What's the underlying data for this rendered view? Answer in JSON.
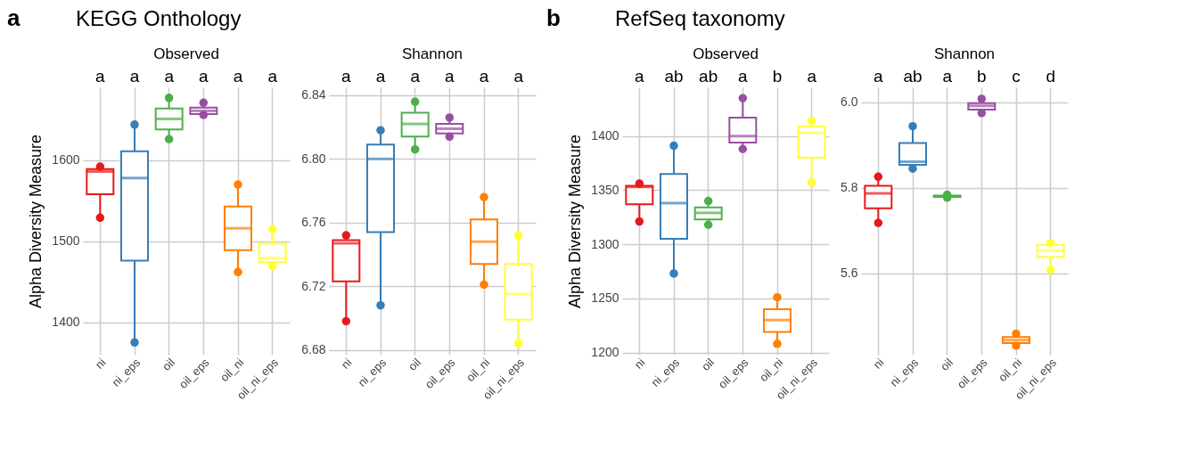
{
  "chart_data": [
    {
      "type": "box",
      "title": "KEGG Onthology",
      "subtitle": "Observed",
      "ylabel": "Alpha Diversity Measure",
      "categories": [
        "ni",
        "ni_eps",
        "oil",
        "oil_eps",
        "oil_ni",
        "oil_ni_eps"
      ],
      "colors": [
        "#e41a1c",
        "#377eb8",
        "#4daf4a",
        "#984ea3",
        "#ff7f00",
        "#ffff33"
      ],
      "boxes": [
        {
          "low": 1529,
          "q1": 1558,
          "median": 1586,
          "q3": 1589,
          "high": 1592
        },
        {
          "low": 1375,
          "q1": 1476,
          "median": 1578,
          "q3": 1611,
          "high": 1644
        },
        {
          "low": 1626,
          "q1": 1638,
          "median": 1651,
          "q3": 1664,
          "high": 1677
        },
        {
          "low": 1656,
          "q1": 1657,
          "median": 1661,
          "q3": 1665,
          "high": 1671
        },
        {
          "low": 1462,
          "q1": 1489,
          "median": 1516,
          "q3": 1543,
          "high": 1570
        },
        {
          "low": 1469,
          "q1": 1474,
          "median": 1479,
          "q3": 1497,
          "high": 1515
        }
      ],
      "series": [
        {
          "type": "scatter",
          "x": [
            "ni",
            "ni",
            "ni_eps",
            "ni_eps",
            "oil",
            "oil",
            "oil_eps",
            "oil_eps",
            "oil_ni",
            "oil_ni",
            "oil_ni_eps",
            "oil_ni_eps"
          ],
          "values": [
            1529,
            1592,
            1375,
            1644,
            1626,
            1677,
            1656,
            1671,
            1462,
            1570,
            1469,
            1515
          ],
          "colors": [
            "#e41a1c",
            "#e41a1c",
            "#377eb8",
            "#377eb8",
            "#4daf4a",
            "#4daf4a",
            "#984ea3",
            "#984ea3",
            "#ff7f00",
            "#ff7f00",
            "#ffff33",
            "#ffff33"
          ]
        }
      ],
      "ylim": [
        1360,
        1690
      ],
      "yticks": [
        1400,
        1500,
        1600
      ],
      "grid": true,
      "legend": false,
      "annotations": [
        "a",
        "a",
        "a",
        "a",
        "a",
        "a",
        "a"
      ]
    },
    {
      "type": "box",
      "subtitle": "Shannon",
      "categories": [
        "ni",
        "ni_eps",
        "oil",
        "oil_eps",
        "oil_ni",
        "oil_ni_eps"
      ],
      "colors": [
        "#e41a1c",
        "#377eb8",
        "#4daf4a",
        "#984ea3",
        "#ff7f00",
        "#ffff33"
      ],
      "boxes": [
        {
          "low": 6.698,
          "q1": 6.723,
          "median": 6.747,
          "q3": 6.749,
          "high": 6.752
        },
        {
          "low": 6.708,
          "q1": 6.754,
          "median": 6.8,
          "q3": 6.809,
          "high": 6.818
        },
        {
          "low": 6.806,
          "q1": 6.814,
          "median": 6.822,
          "q3": 6.829,
          "high": 6.836
        },
        {
          "low": 6.814,
          "q1": 6.816,
          "median": 6.819,
          "q3": 6.822,
          "high": 6.826
        },
        {
          "low": 6.721,
          "q1": 6.734,
          "median": 6.748,
          "q3": 6.762,
          "high": 6.776
        },
        {
          "low": 6.684,
          "q1": 6.699,
          "median": 6.715,
          "q3": 6.734,
          "high": 6.752
        }
      ],
      "series": [
        {
          "type": "scatter",
          "x": [
            "ni",
            "ni",
            "ni_eps",
            "ni_eps",
            "oil",
            "oil",
            "oil_eps",
            "oil_eps",
            "oil_ni",
            "oil_ni",
            "oil_ni_eps",
            "oil_ni_eps"
          ],
          "values": [
            6.698,
            6.752,
            6.708,
            6.818,
            6.806,
            6.836,
            6.814,
            6.826,
            6.721,
            6.776,
            6.684,
            6.752
          ],
          "colors": [
            "#e41a1c",
            "#e41a1c",
            "#377eb8",
            "#377eb8",
            "#4daf4a",
            "#4daf4a",
            "#984ea3",
            "#984ea3",
            "#ff7f00",
            "#ff7f00",
            "#ffff33",
            "#ffff33"
          ]
        }
      ],
      "ylim": [
        6.677,
        6.845
      ],
      "yticks": [
        6.68,
        6.72,
        6.76,
        {
          "value": 6.8,
          "label": "6.80"
        },
        6.84
      ],
      "grid": true,
      "legend": false,
      "annotations": [
        "a",
        "a",
        "a",
        "a",
        "a",
        "a"
      ]
    },
    {
      "type": "box",
      "title": "RefSeq taxonomy",
      "subtitle": "Observed",
      "ylabel": "Alpha Diversity Measure",
      "categories": [
        "ni",
        "ni_eps",
        "oil",
        "oil_eps",
        "oil_ni",
        "oil_ni_eps"
      ],
      "colors": [
        "#e41a1c",
        "#377eb8",
        "#4daf4a",
        "#984ea3",
        "#ff7f00",
        "#ffff33"
      ],
      "boxes": [
        {
          "low": 1321,
          "q1": 1337,
          "median": 1353,
          "q3": 1354,
          "high": 1356
        },
        {
          "low": 1273,
          "q1": 1305,
          "median": 1338,
          "q3": 1365,
          "high": 1391
        },
        {
          "low": 1318,
          "q1": 1323,
          "median": 1329,
          "q3": 1334,
          "high": 1340
        },
        {
          "low": 1388,
          "q1": 1394,
          "median": 1400,
          "q3": 1417,
          "high": 1435
        },
        {
          "low": 1208,
          "q1": 1219,
          "median": 1230,
          "q3": 1240,
          "high": 1251
        },
        {
          "low": 1357,
          "q1": 1380,
          "median": 1403,
          "q3": 1409,
          "high": 1414
        }
      ],
      "series": [
        {
          "type": "scatter",
          "x": [
            "ni",
            "ni",
            "ni_eps",
            "ni_eps",
            "oil",
            "oil",
            "oil_eps",
            "oil_eps",
            "oil_ni",
            "oil_ni",
            "oil_ni_eps",
            "oil_ni_eps"
          ],
          "values": [
            1321,
            1356,
            1273,
            1391,
            1318,
            1340,
            1388,
            1435,
            1208,
            1251,
            1357,
            1414
          ],
          "colors": [
            "#e41a1c",
            "#e41a1c",
            "#377eb8",
            "#377eb8",
            "#4daf4a",
            "#4daf4a",
            "#984ea3",
            "#984ea3",
            "#ff7f00",
            "#ff7f00",
            "#ffff33",
            "#ffff33"
          ]
        }
      ],
      "ylim": [
        1198,
        1445
      ],
      "yticks": [
        1200,
        1250,
        1300,
        1350,
        1400
      ],
      "grid": true,
      "legend": false,
      "annotations": [
        "b",
        "a",
        "ab",
        "ab",
        "a",
        "b",
        "a"
      ]
    },
    {
      "type": "box",
      "subtitle": "Shannon",
      "categories": [
        "ni",
        "ni_eps",
        "oil",
        "oil_eps",
        "oil_ni",
        "oil_ni_eps"
      ],
      "colors": [
        "#e41a1c",
        "#377eb8",
        "#4daf4a",
        "#984ea3",
        "#ff7f00",
        "#ffff33"
      ],
      "boxes": [
        {
          "low": 5.718,
          "q1": 5.752,
          "median": 5.787,
          "q3": 5.805,
          "high": 5.826
        },
        {
          "low": 5.845,
          "q1": 5.854,
          "median": 5.861,
          "q3": 5.905,
          "high": 5.944
        },
        {
          "low": 5.777,
          "q1": 5.779,
          "median": 5.78,
          "q3": 5.782,
          "high": 5.784
        },
        {
          "low": 5.975,
          "q1": 5.983,
          "median": 5.992,
          "q3": 5.998,
          "high": 6.008
        },
        {
          "low": 5.431,
          "q1": 5.437,
          "median": 5.444,
          "q3": 5.451,
          "high": 5.459
        },
        {
          "low": 5.608,
          "q1": 5.638,
          "median": 5.653,
          "q3": 5.667,
          "high": 5.671
        }
      ],
      "series": [
        {
          "type": "scatter",
          "x": [
            "ni",
            "ni",
            "ni_eps",
            "ni_eps",
            "oil",
            "oil",
            "oil_eps",
            "oil_eps",
            "oil_ni",
            "oil_ni",
            "oil_ni_eps",
            "oil_ni_eps"
          ],
          "values": [
            5.718,
            5.826,
            5.845,
            5.944,
            5.777,
            5.784,
            5.975,
            6.008,
            5.431,
            5.459,
            5.608,
            5.671
          ],
          "colors": [
            "#e41a1c",
            "#e41a1c",
            "#377eb8",
            "#377eb8",
            "#4daf4a",
            "#4daf4a",
            "#984ea3",
            "#984ea3",
            "#ff7f00",
            "#ff7f00",
            "#ffff33",
            "#ffff33"
          ]
        }
      ],
      "ylim": [
        5.41,
        6.035
      ],
      "yticks": [
        5.6,
        5.8,
        {
          "value": 6,
          "label": "6.0"
        }
      ],
      "grid": true,
      "legend": false,
      "annotations": [
        "a",
        "ab",
        "a",
        "b",
        "c",
        "d"
      ]
    }
  ]
}
